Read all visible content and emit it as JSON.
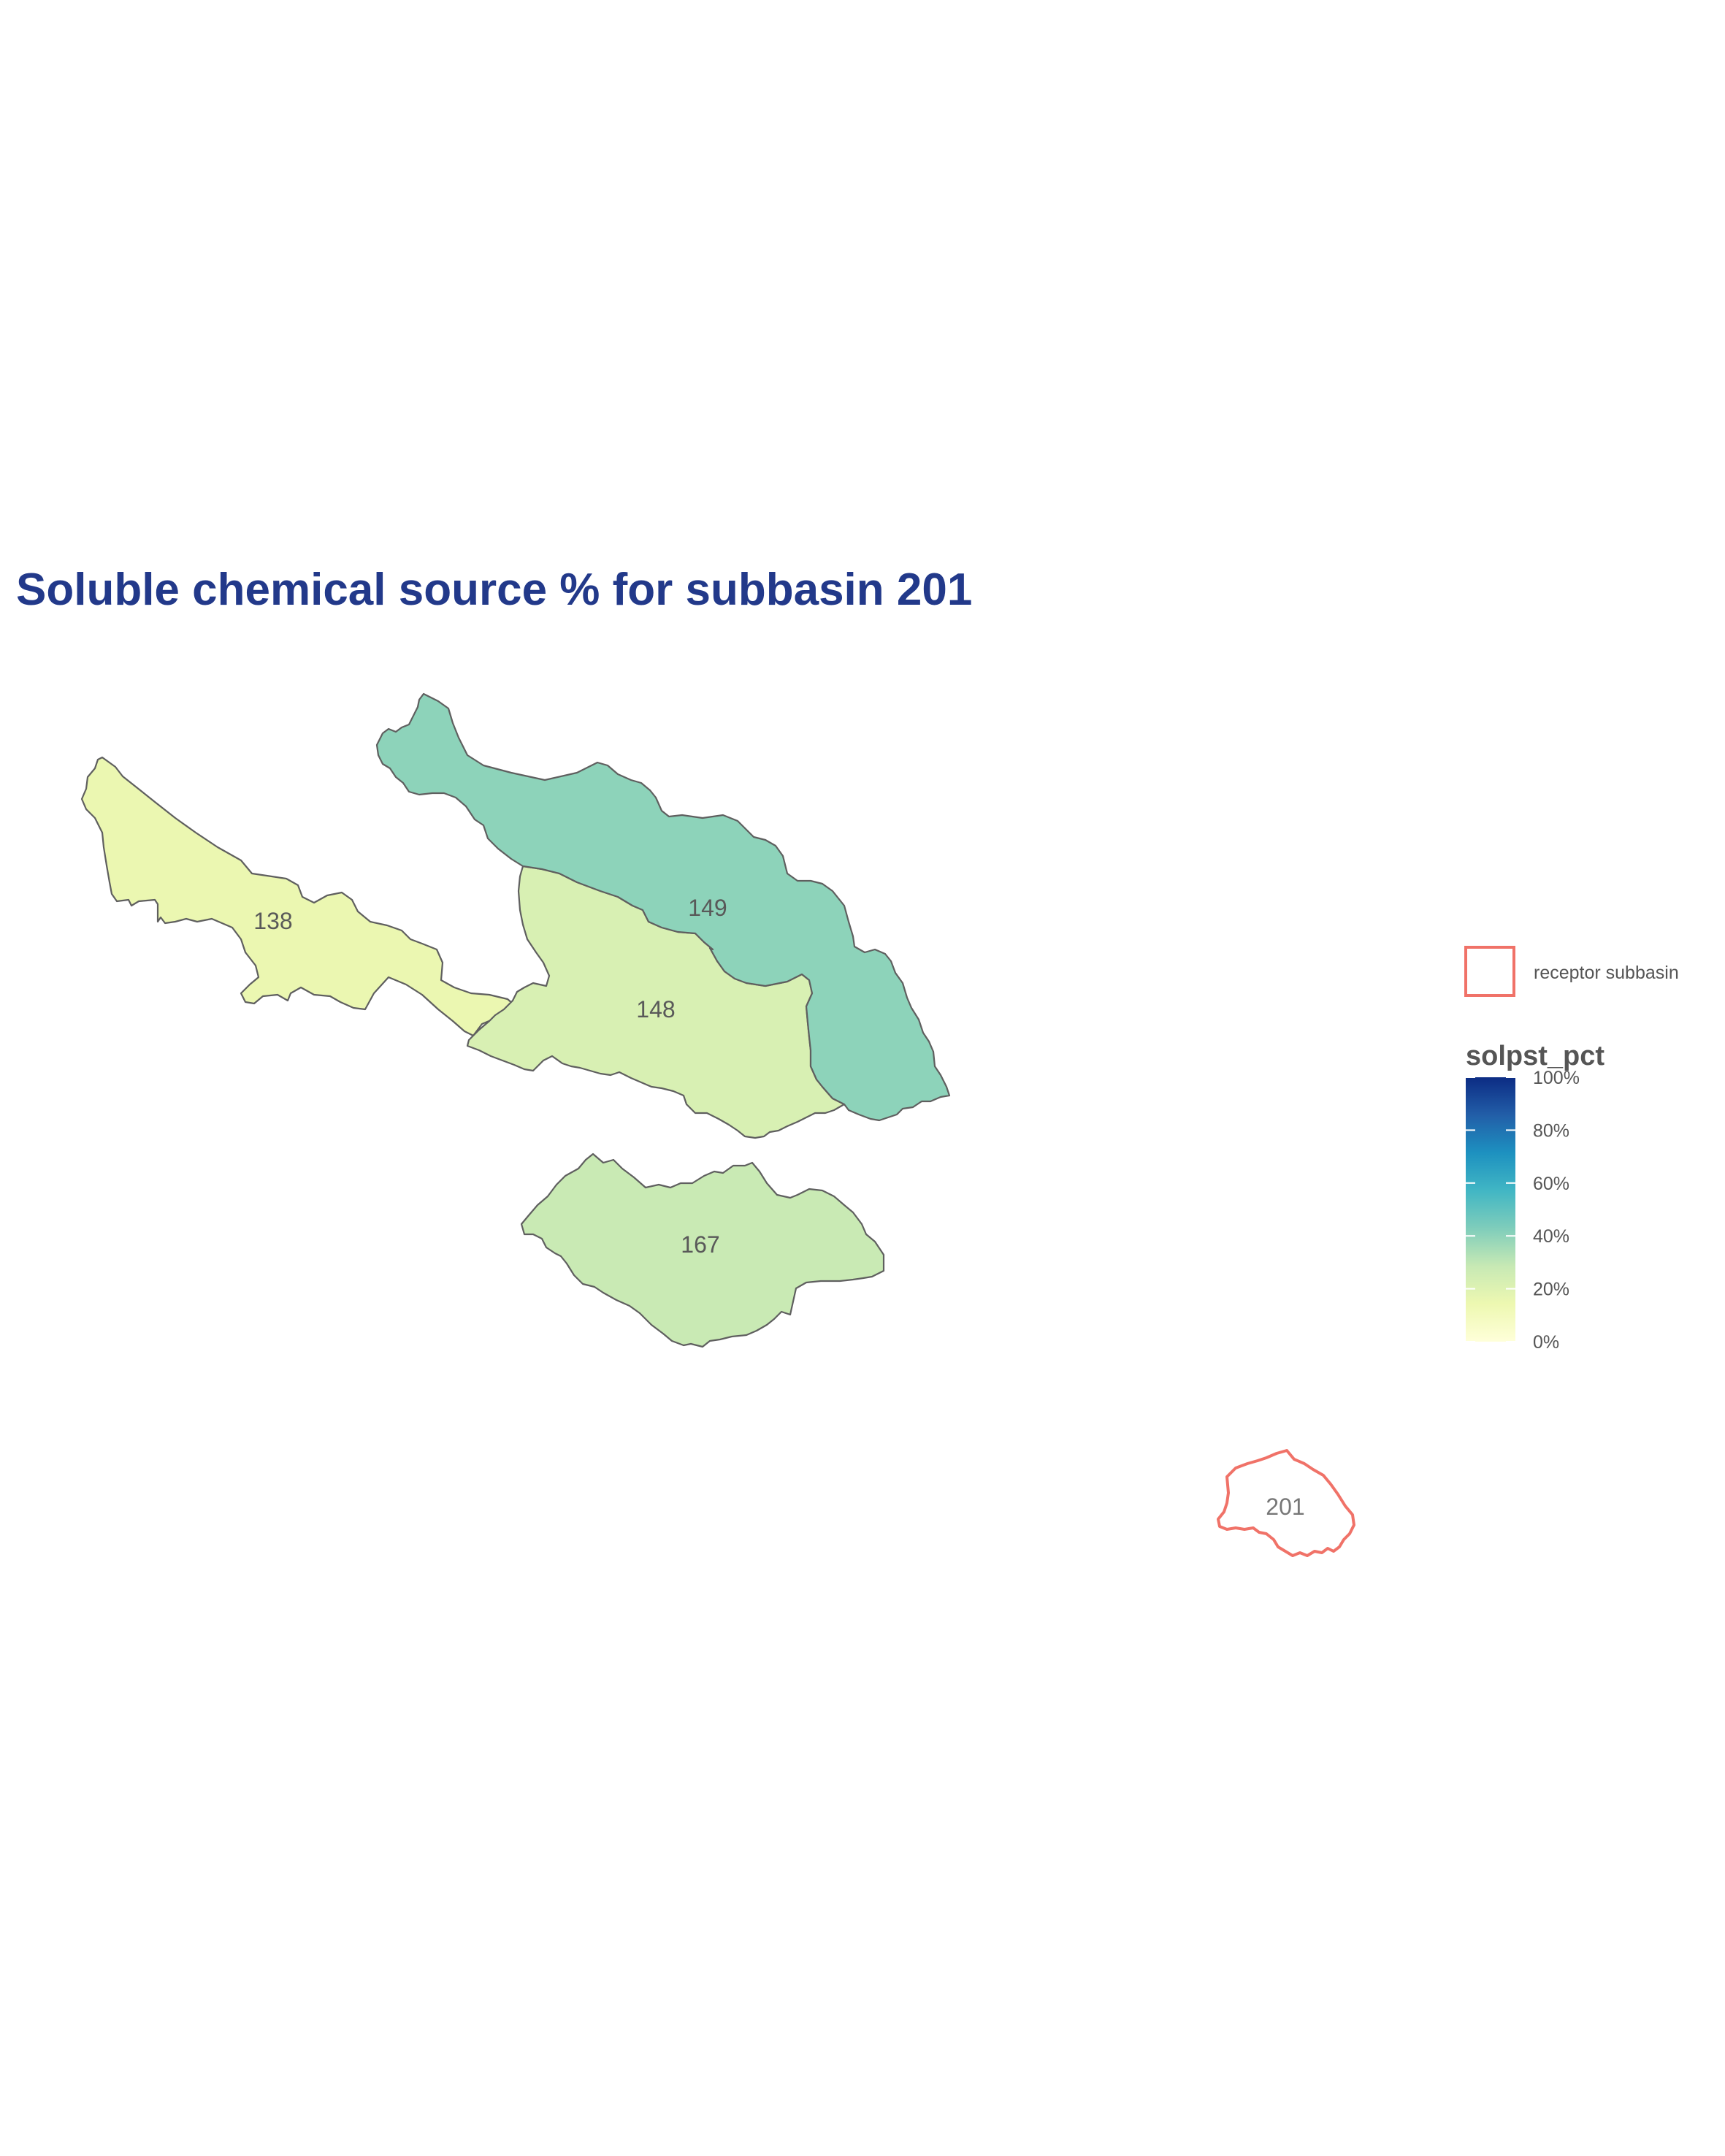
{
  "title": "Soluble chemical source % for subbasin 201",
  "receptor": {
    "id": "201"
  },
  "subbasins": [
    {
      "id": "138",
      "solpst_pct": 15
    },
    {
      "id": "148",
      "solpst_pct": 22
    },
    {
      "id": "149",
      "solpst_pct": 40
    },
    {
      "id": "167",
      "solpst_pct": 28
    }
  ],
  "legend": {
    "receptor_label": "receptor subbasin",
    "receptor_color": "#f07268",
    "fill_title": "solpst_pct",
    "ticks": [
      "0%",
      "20%",
      "40%",
      "60%",
      "80%",
      "100%"
    ],
    "scale_colors": [
      "#ffffd9",
      "#edf8b1",
      "#c7e9b4",
      "#7fcdbb",
      "#41b6c4",
      "#1d91c0",
      "#225ea8",
      "#0c2c84"
    ]
  },
  "colors": {
    "title": "#22398a",
    "border": "#5f5f5f"
  }
}
